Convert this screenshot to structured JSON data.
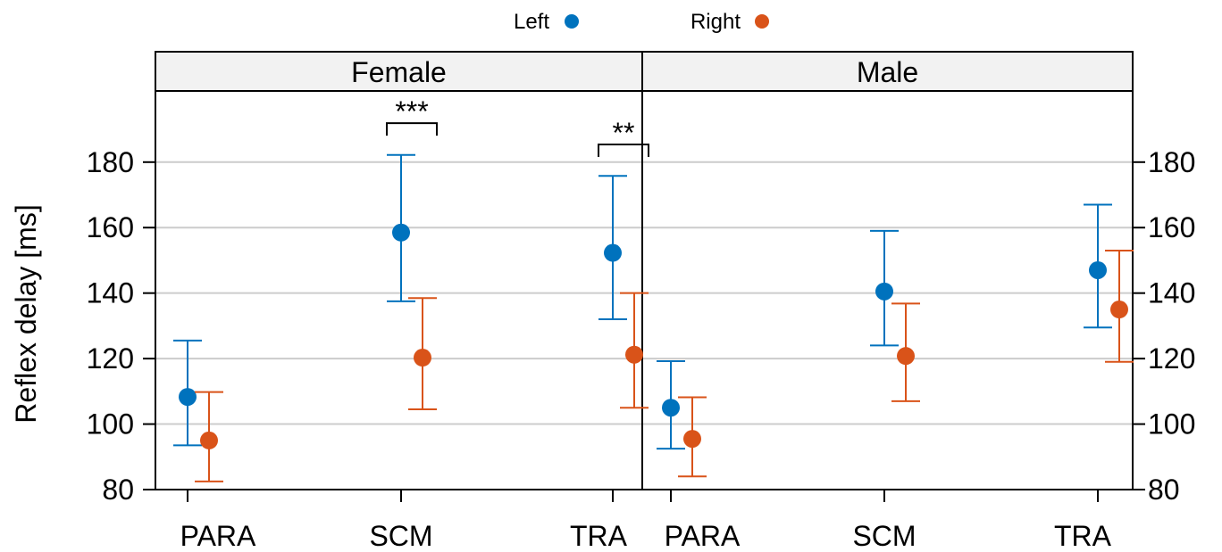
{
  "chart_data": {
    "type": "scatter",
    "ylabel": "Reflex delay [ms]",
    "ylim": [
      80,
      200
    ],
    "yticks": [
      80,
      100,
      120,
      140,
      160,
      180
    ],
    "grid": true,
    "legend_position": "top-center",
    "categories": [
      "PARA",
      "SCM",
      "TRA"
    ],
    "series": [
      {
        "name": "Left",
        "color": "#0072bd"
      },
      {
        "name": "Right",
        "color": "#d95319"
      }
    ],
    "panels": [
      {
        "title": "Female",
        "points": [
          {
            "category": "PARA",
            "series": "Left",
            "mean": 108.3,
            "lower": 93.5,
            "upper": 125.5
          },
          {
            "category": "PARA",
            "series": "Right",
            "mean": 95.0,
            "lower": 82.5,
            "upper": 109.8
          },
          {
            "category": "SCM",
            "series": "Left",
            "mean": 158.5,
            "lower": 137.5,
            "upper": 182.2
          },
          {
            "category": "SCM",
            "series": "Right",
            "mean": 120.3,
            "lower": 104.5,
            "upper": 138.5
          },
          {
            "category": "TRA",
            "series": "Left",
            "mean": 152.3,
            "lower": 132.0,
            "upper": 175.8
          },
          {
            "category": "TRA",
            "series": "Right",
            "mean": 121.2,
            "lower": 105.0,
            "upper": 140.0
          }
        ],
        "significance": [
          {
            "category": "SCM",
            "label": "***",
            "y": 190
          },
          {
            "category": "TRA",
            "label": "**",
            "y": 183.5
          }
        ]
      },
      {
        "title": "Male",
        "points": [
          {
            "category": "PARA",
            "series": "Left",
            "mean": 105.0,
            "lower": 92.5,
            "upper": 119.2
          },
          {
            "category": "PARA",
            "series": "Right",
            "mean": 95.5,
            "lower": 84.0,
            "upper": 108.2
          },
          {
            "category": "SCM",
            "series": "Left",
            "mean": 140.5,
            "lower": 124.0,
            "upper": 159.0
          },
          {
            "category": "SCM",
            "series": "Right",
            "mean": 120.8,
            "lower": 107.0,
            "upper": 136.8
          },
          {
            "category": "TRA",
            "series": "Left",
            "mean": 147.0,
            "lower": 129.5,
            "upper": 167.0
          },
          {
            "category": "TRA",
            "series": "Right",
            "mean": 135.0,
            "lower": 119.0,
            "upper": 153.0
          }
        ],
        "significance": []
      }
    ]
  }
}
